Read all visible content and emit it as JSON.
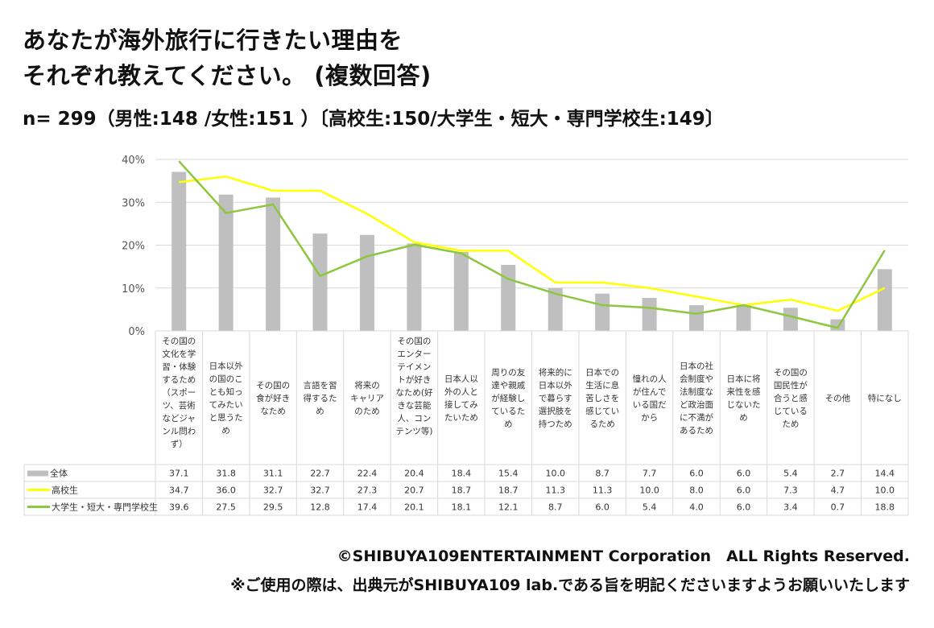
{
  "title_line1": "あなたが海外旅行に行きたい理由を",
  "title_line2": "それぞれ教えてください。 (複数回答)",
  "subtitle": "n= 299（男性:148 /女性:151 ）〔高校生:150/大学生・短大・専門学校生:149〕",
  "footer": {
    "copyright": "©SHIBUYA109ENTERTAINMENT Corporation　ALL Rights Reserved.",
    "note": "※ご使用の際は、出典元がSHIBUYA109 lab.である旨を明記くださいますようお願いいたします"
  },
  "colors": {
    "bar": "#bfbfbf",
    "line_high": "#ffff00",
    "line_univ": "#8dc63f",
    "grid": "#d9d9d9"
  },
  "chart_data": {
    "type": "bar",
    "ylim": [
      0,
      40
    ],
    "yticks": [
      "0%",
      "10%",
      "20%",
      "30%",
      "40%"
    ],
    "grid": true,
    "legend": "table-left",
    "categories": [
      [
        "その国の",
        "文化を学",
        "習・体験",
        "するため",
        "（スポー",
        "ツ、芸術",
        "などジャ",
        "ンル問わ",
        "ず）"
      ],
      [
        "日本以外",
        "の国のこ",
        "とも知っ",
        "てみたい",
        "と思うた",
        "め"
      ],
      [
        "その国の",
        "食が好き",
        "なため"
      ],
      [
        "言語を習",
        "得するた",
        "め"
      ],
      [
        "将来の",
        "キャリア",
        "のため"
      ],
      [
        "その国の",
        "エンター",
        "テイメン",
        "トが好き",
        "なため(好",
        "きな芸能",
        "人、コン",
        "テンツ等)"
      ],
      [
        "日本人以",
        "外の人と",
        "接してみ",
        "たいため"
      ],
      [
        "周りの友",
        "達や親戚",
        "が経験し",
        "ているた",
        "め"
      ],
      [
        "将来的に",
        "日本以外",
        "で暮らす",
        "選択肢を",
        "持つため"
      ],
      [
        "日本での",
        "生活に息",
        "苦しさを",
        "感じてい",
        "るため"
      ],
      [
        "憧れの人",
        "が住んで",
        "いる国だ",
        "から"
      ],
      [
        "日本の社",
        "会制度や",
        "法制度な",
        "ど政治面",
        "に不満が",
        "あるため"
      ],
      [
        "日本に将",
        "来性を感",
        "じないた",
        "め"
      ],
      [
        "その国の",
        "国民性が",
        "合うと感",
        "じている",
        "ため"
      ],
      [
        "その他"
      ],
      [
        "特になし"
      ]
    ],
    "series": [
      {
        "name": "全体",
        "kind": "bar",
        "values": [
          37.1,
          31.8,
          31.1,
          22.7,
          22.4,
          20.4,
          18.4,
          15.4,
          10.0,
          8.7,
          7.7,
          6.0,
          6.0,
          5.4,
          2.7,
          14.4
        ],
        "labels": [
          "37.1",
          "31.8",
          "31.1",
          "22.7",
          "22.4",
          "20.4",
          "18.4",
          "15.4",
          "10.0",
          "8.7",
          "7.7",
          "6.0",
          "6.0",
          "5.4",
          "2.7",
          "14.4"
        ]
      },
      {
        "name": "高校生",
        "kind": "line",
        "values": [
          34.7,
          36.0,
          32.7,
          32.7,
          27.3,
          20.7,
          18.7,
          18.7,
          11.3,
          11.3,
          10.0,
          8.0,
          6.0,
          7.3,
          4.7,
          10.0
        ],
        "labels": [
          "34.7",
          "36.0",
          "32.7",
          "32.7",
          "27.3",
          "20.7",
          "18.7",
          "18.7",
          "11.3",
          "11.3",
          "10.0",
          "8.0",
          "6.0",
          "7.3",
          "4.7",
          "10.0"
        ]
      },
      {
        "name": "大学生・短大・専門学校生",
        "kind": "line",
        "values": [
          39.6,
          27.5,
          29.5,
          12.8,
          17.4,
          20.1,
          18.1,
          12.1,
          8.7,
          6.0,
          5.4,
          4.0,
          6.0,
          3.4,
          0.7,
          18.8
        ],
        "labels": [
          "39.6",
          "27.5",
          "29.5",
          "12.8",
          "17.4",
          "20.1",
          "18.1",
          "12.1",
          "8.7",
          "6.0",
          "5.4",
          "4.0",
          "6.0",
          "3.4",
          "0.7",
          "18.8"
        ]
      }
    ]
  }
}
